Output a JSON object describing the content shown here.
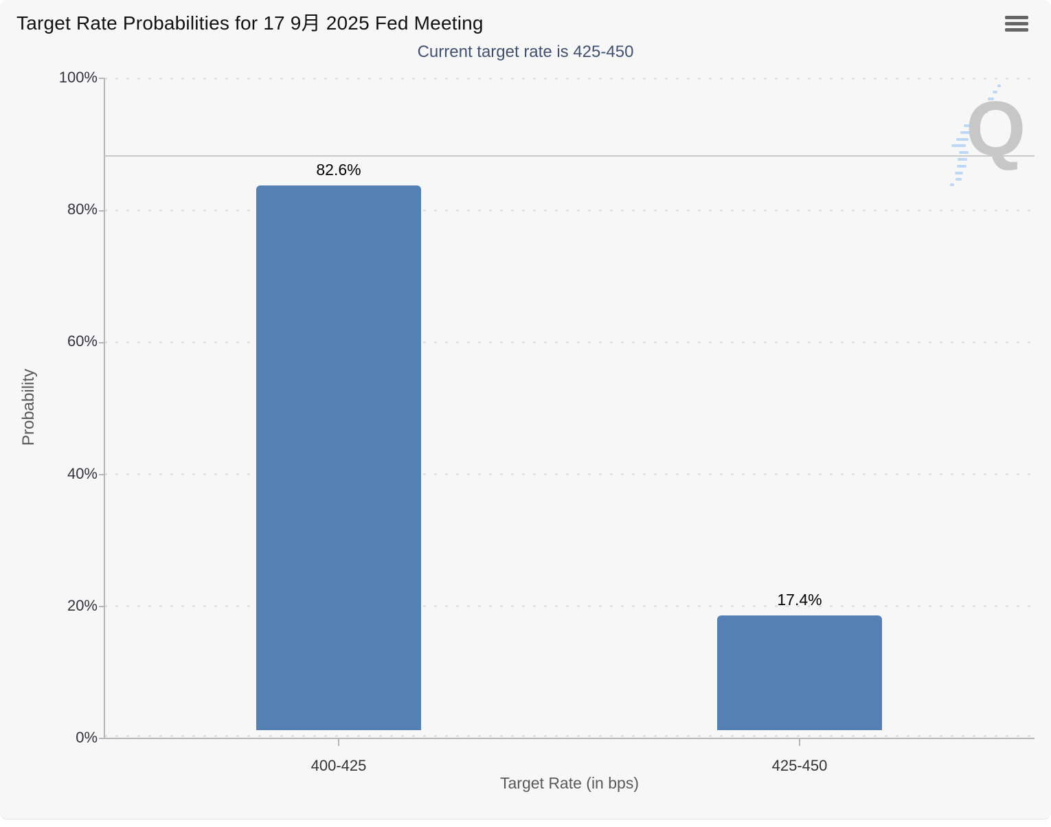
{
  "chart_data": {
    "type": "bar",
    "title": "Target Rate Probabilities for 17 9月 2025 Fed Meeting",
    "subtitle": "Current target rate is 425-450",
    "xlabel": "Target Rate (in bps)",
    "ylabel": "Probability",
    "categories": [
      "400-425",
      "425-450"
    ],
    "values": [
      82.6,
      17.4
    ],
    "data_labels": [
      "82.6%",
      "17.4%"
    ],
    "ytick_labels": [
      "100%",
      "80%",
      "60%",
      "40%",
      "20%",
      "0%"
    ],
    "ylim": [
      0,
      100
    ],
    "grid": "dotted-horizontal",
    "legend": "none",
    "plotline_value": 88.3,
    "colors": {
      "bar": "#5580b4",
      "title": "#111111",
      "subtitle": "#41506e",
      "axis_label": "#333333",
      "axis_title": "#595959",
      "grid_dot": "#e2e2e2",
      "axis_line": "#b5b5b5",
      "plotline": "#c9c9c9",
      "card_bg": "#f7f7f7",
      "menu_icon": "#666666",
      "watermark_q": "#c7c7c7",
      "watermark_dash": "#bdd7f5"
    }
  },
  "menu": {
    "icon": "hamburger-icon"
  },
  "watermark": {
    "letter": "Q"
  }
}
